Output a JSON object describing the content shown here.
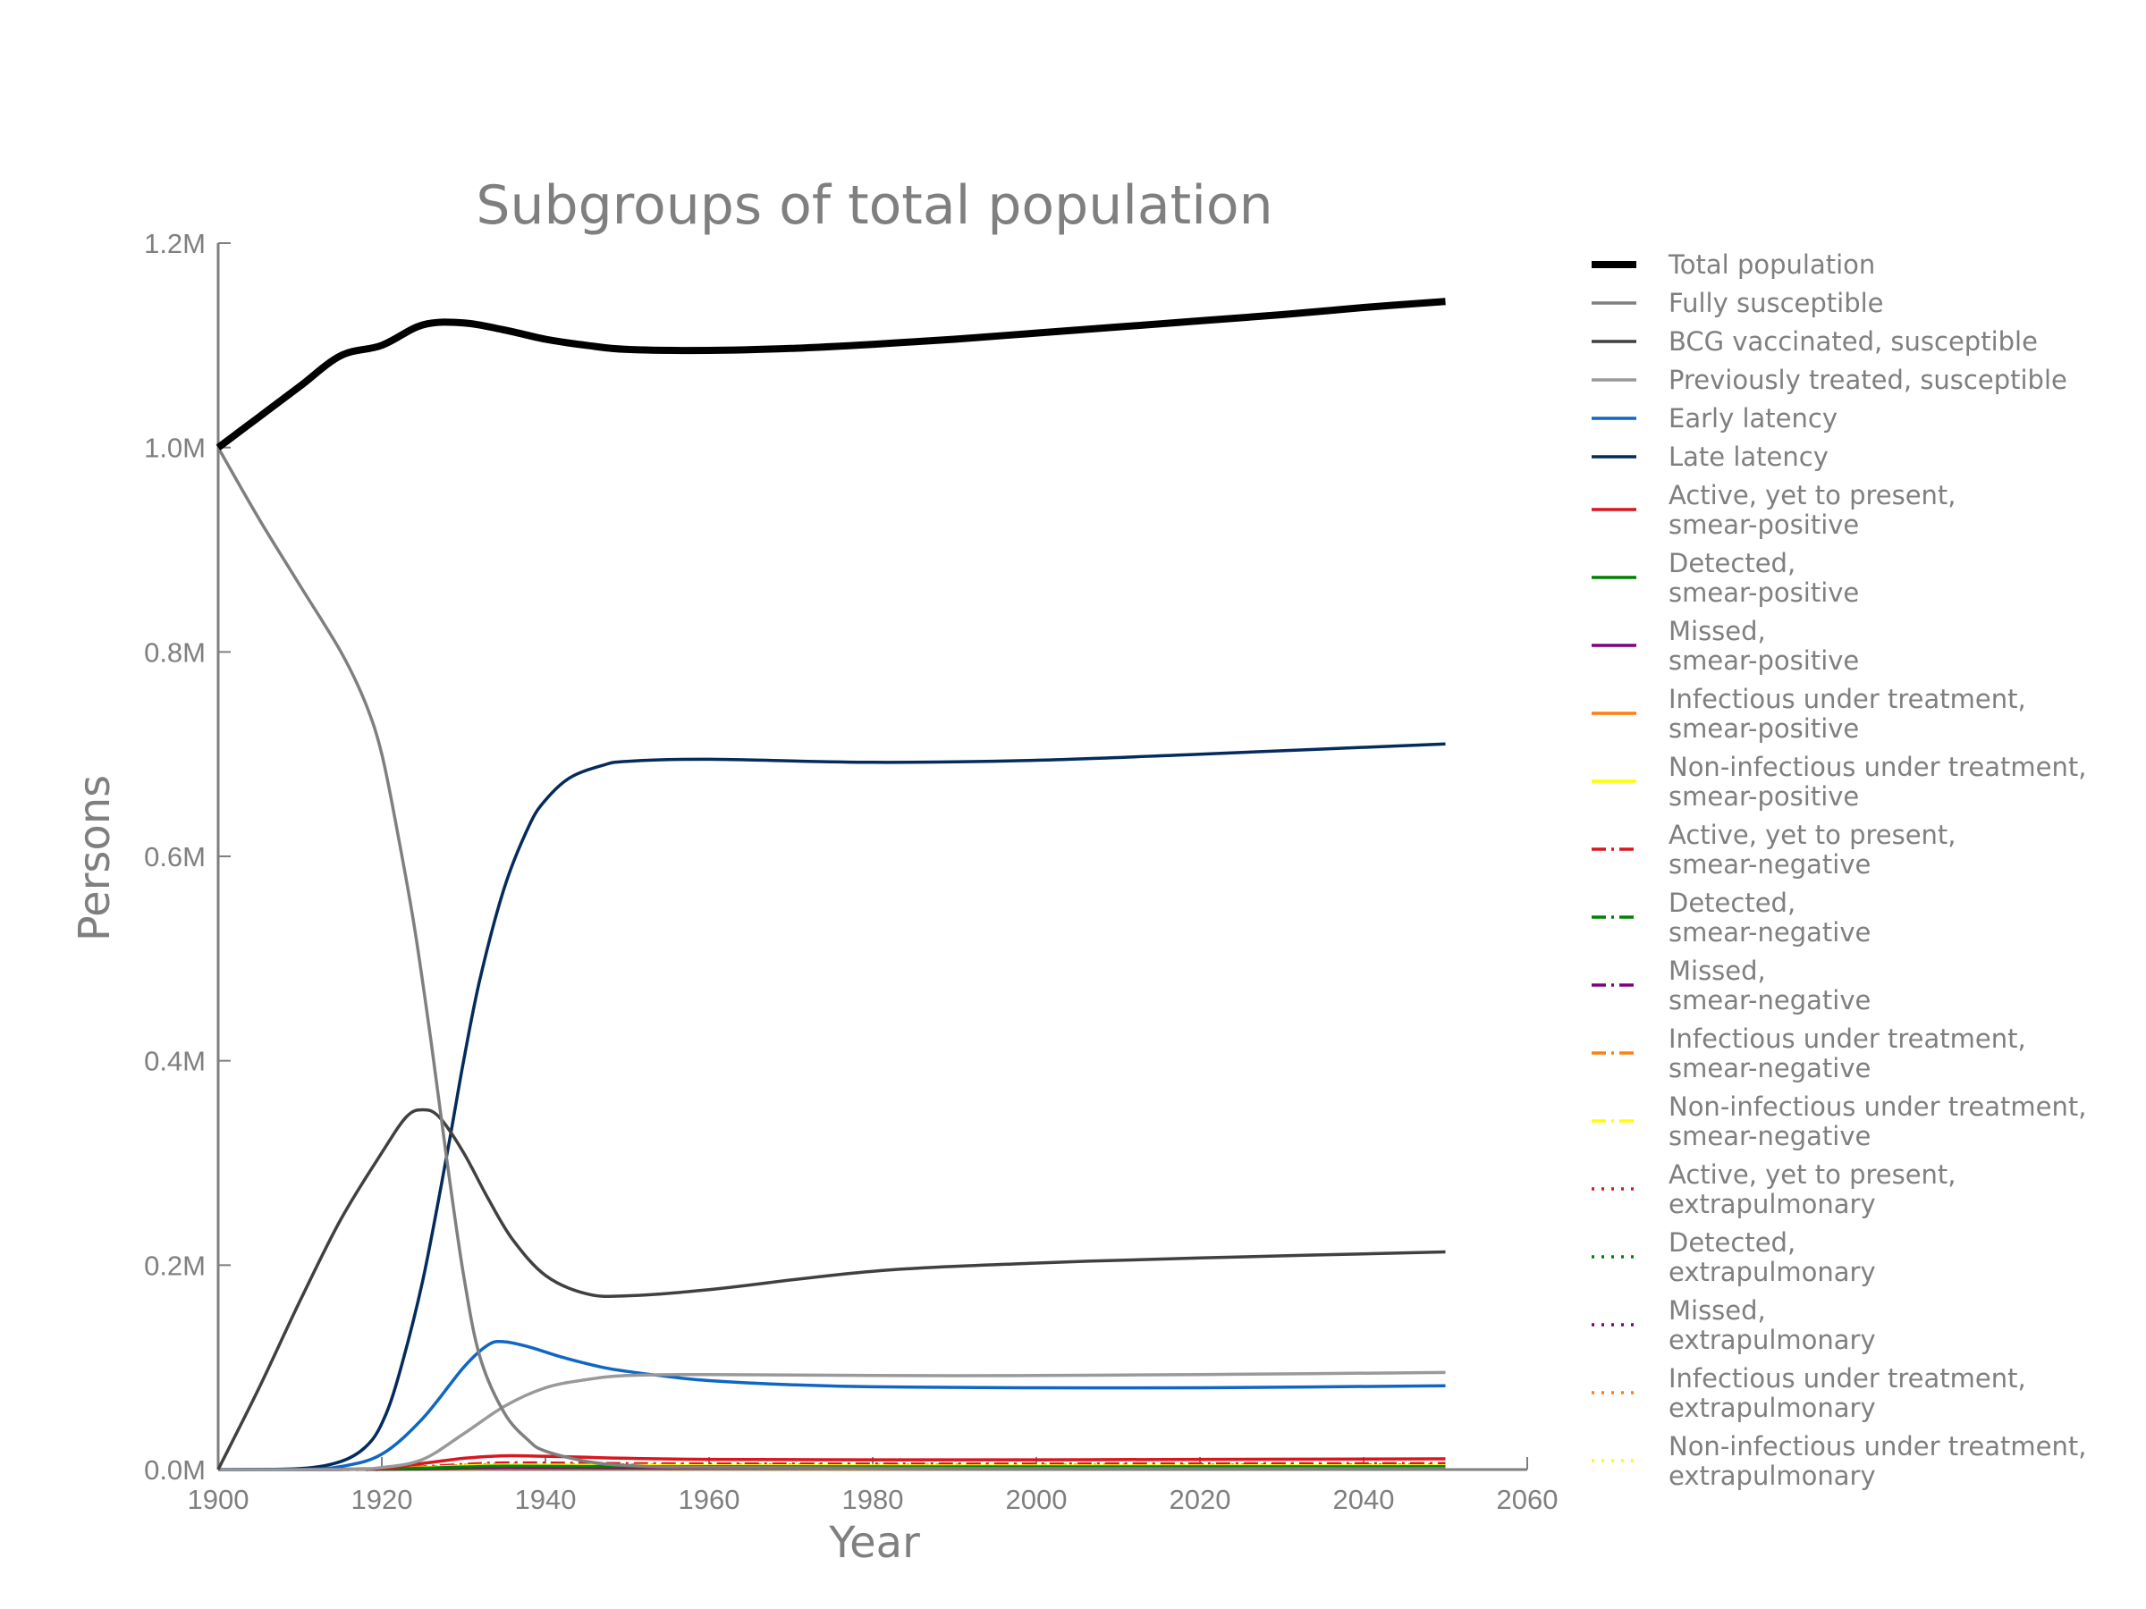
{
  "chart_data": {
    "type": "line",
    "title": "Subgroups of total population",
    "xlabel": "Year",
    "ylabel": "Persons",
    "xlim": [
      1900,
      2060
    ],
    "ylim": [
      0,
      1200000
    ],
    "xticks": [
      1900,
      1920,
      1940,
      1960,
      1980,
      2000,
      2020,
      2040,
      2060
    ],
    "xtick_labels": [
      "1900",
      "1920",
      "1940",
      "1960",
      "1980",
      "2000",
      "2020",
      "2040",
      "2060"
    ],
    "yticks": [
      0,
      200000,
      400000,
      600000,
      800000,
      1000000,
      1200000
    ],
    "ytick_labels": [
      "0.0M",
      "0.2M",
      "0.4M",
      "0.6M",
      "0.8M",
      "1.0M",
      "1.2M"
    ],
    "grid": false,
    "legend_position": "right",
    "series": [
      {
        "name": "Total population",
        "color": "#000000",
        "style": "solid",
        "weight": "heavy",
        "x": [
          1900,
          1905,
          1910,
          1915,
          1920,
          1925,
          1930,
          1935,
          1940,
          1945,
          1950,
          1960,
          1970,
          1980,
          1990,
          2000,
          2010,
          2020,
          2030,
          2040,
          2050
        ],
        "y": [
          1000000,
          1030000,
          1060000,
          1090000,
          1100000,
          1120000,
          1122000,
          1115000,
          1106000,
          1100000,
          1096000,
          1095000,
          1097000,
          1101000,
          1106000,
          1112000,
          1118000,
          1124000,
          1130000,
          1137000,
          1143000
        ]
      },
      {
        "name": "Fully susceptible",
        "color": "#7f7f7f",
        "style": "solid",
        "weight": "normal",
        "x": [
          1900,
          1905,
          1910,
          1915,
          1918,
          1920,
          1922,
          1924,
          1926,
          1928,
          1930,
          1932,
          1935,
          1938,
          1940,
          1945,
          1950,
          1960,
          2000,
          2050
        ],
        "y": [
          1000000,
          930000,
          865000,
          800000,
          750000,
          700000,
          620000,
          530000,
          420000,
          300000,
          190000,
          110000,
          55000,
          28000,
          18000,
          8000,
          4000,
          2000,
          1000,
          1000
        ]
      },
      {
        "name": "BCG vaccinated, susceptible",
        "color": "#404040",
        "style": "solid",
        "weight": "normal",
        "x": [
          1900,
          1905,
          1910,
          1915,
          1920,
          1923,
          1925,
          1927,
          1930,
          1933,
          1936,
          1940,
          1945,
          1950,
          1960,
          1980,
          2000,
          2020,
          2050
        ],
        "y": [
          0,
          80000,
          165000,
          245000,
          310000,
          345000,
          352000,
          345000,
          310000,
          265000,
          225000,
          190000,
          172000,
          170000,
          176000,
          194000,
          202000,
          207000,
          213000
        ]
      },
      {
        "name": "Previously treated, susceptible",
        "color": "#999999",
        "style": "solid",
        "weight": "normal",
        "x": [
          1900,
          1915,
          1920,
          1925,
          1930,
          1935,
          1940,
          1945,
          1950,
          1960,
          1980,
          2000,
          2020,
          2050
        ],
        "y": [
          0,
          0,
          2000,
          10000,
          35000,
          62000,
          80000,
          88000,
          92000,
          93000,
          92000,
          92000,
          93000,
          95000
        ]
      },
      {
        "name": "Early latency",
        "color": "#0f66c4",
        "style": "solid",
        "weight": "normal",
        "x": [
          1900,
          1910,
          1915,
          1920,
          1925,
          1930,
          1933,
          1935,
          1938,
          1942,
          1947,
          1950,
          1955,
          1960,
          1970,
          1980,
          2000,
          2020,
          2050
        ],
        "y": [
          0,
          0,
          3000,
          15000,
          50000,
          100000,
          122000,
          125000,
          120000,
          110000,
          100000,
          96000,
          91000,
          87000,
          83000,
          81000,
          80000,
          80000,
          82000
        ]
      },
      {
        "name": "Late latency",
        "color": "#032b5c",
        "style": "solid",
        "weight": "normal",
        "x": [
          1900,
          1910,
          1915,
          1918,
          1920,
          1922,
          1925,
          1928,
          1930,
          1932,
          1935,
          1938,
          1940,
          1943,
          1947,
          1950,
          1960,
          1980,
          2000,
          2020,
          2050
        ],
        "y": [
          0,
          1000,
          8000,
          22000,
          45000,
          90000,
          185000,
          310000,
          400000,
          480000,
          570000,
          630000,
          655000,
          677000,
          689000,
          693000,
          695000,
          692000,
          694000,
          700000,
          710000
        ]
      },
      {
        "name": "Active, yet to present,\nsmear-positive",
        "color": "#d8171f",
        "style": "solid",
        "weight": "normal",
        "x": [
          1900,
          1918,
          1925,
          1930,
          1935,
          1940,
          1945,
          1950,
          1960,
          1980,
          2000,
          2020,
          2050
        ],
        "y": [
          0,
          500,
          6000,
          11000,
          13500,
          13000,
          12000,
          11000,
          10000,
          9500,
          9500,
          10000,
          10500
        ]
      },
      {
        "name": "Detected,\nsmear-positive",
        "color": "#008000",
        "style": "solid",
        "weight": "normal",
        "x": [
          1900,
          1920,
          1930,
          1935,
          1945,
          1960,
          2000,
          2050
        ],
        "y": [
          0,
          500,
          2500,
          3200,
          3000,
          2700,
          2600,
          2800
        ]
      },
      {
        "name": "Missed,\nsmear-positive",
        "color": "#800080",
        "style": "solid",
        "weight": "normal",
        "x": [
          1900,
          1920,
          1930,
          1935,
          1945,
          1960,
          2000,
          2050
        ],
        "y": [
          0,
          300,
          1500,
          2000,
          1800,
          1600,
          1500,
          1600
        ]
      },
      {
        "name": "Infectious under treatment,\nsmear-positive",
        "color": "#ff7f0e",
        "style": "solid",
        "weight": "normal",
        "x": [
          1900,
          1920,
          1930,
          1935,
          1945,
          1960,
          2000,
          2050
        ],
        "y": [
          0,
          200,
          1000,
          1300,
          1200,
          1100,
          1000,
          1100
        ]
      },
      {
        "name": "Non-infectious under treatment,\nsmear-positive",
        "color": "#ffff00",
        "style": "solid",
        "weight": "normal",
        "x": [
          1900,
          1920,
          1930,
          1935,
          1945,
          1960,
          2000,
          2050
        ],
        "y": [
          0,
          600,
          3500,
          4500,
          4200,
          3800,
          3600,
          3800
        ]
      },
      {
        "name": "Active, yet to present,\nsmear-negative",
        "color": "#d8171f",
        "style": "dashdot",
        "weight": "normal",
        "x": [
          1900,
          1920,
          1930,
          1935,
          1945,
          1960,
          2000,
          2050
        ],
        "y": [
          0,
          1000,
          5000,
          6500,
          6000,
          5500,
          5500,
          5800
        ]
      },
      {
        "name": "Detected,\nsmear-negative",
        "color": "#008000",
        "style": "dashdot",
        "weight": "normal",
        "x": [
          1900,
          1920,
          1930,
          1935,
          1945,
          1960,
          2000,
          2050
        ],
        "y": [
          0,
          400,
          2000,
          2600,
          2400,
          2200,
          2100,
          2300
        ]
      },
      {
        "name": "Missed,\nsmear-negative",
        "color": "#800080",
        "style": "dashdot",
        "weight": "normal",
        "x": [
          1900,
          1920,
          1930,
          1935,
          1945,
          1960,
          2000,
          2050
        ],
        "y": [
          0,
          300,
          1400,
          1800,
          1700,
          1500,
          1400,
          1500
        ]
      },
      {
        "name": "Infectious under treatment,\nsmear-negative",
        "color": "#ff7f0e",
        "style": "dashdot",
        "weight": "normal",
        "x": [
          1900,
          1920,
          1930,
          1935,
          1945,
          1960,
          2000,
          2050
        ],
        "y": [
          0,
          300,
          1500,
          2000,
          1900,
          1700,
          1600,
          1700
        ]
      },
      {
        "name": "Non-infectious under treatment,\nsmear-negative",
        "color": "#ffff00",
        "style": "dashdot",
        "weight": "normal",
        "x": [
          1900,
          1920,
          1930,
          1935,
          1945,
          1960,
          2000,
          2050
        ],
        "y": [
          0,
          500,
          3000,
          4000,
          3800,
          3500,
          3300,
          3500
        ]
      },
      {
        "name": "Active, yet to present,\nextrapulmonary",
        "color": "#d8171f",
        "style": "dotted",
        "weight": "normal",
        "x": [
          1900,
          1920,
          1930,
          1935,
          1945,
          1960,
          2000,
          2050
        ],
        "y": [
          0,
          800,
          4000,
          5000,
          4700,
          4300,
          4200,
          4400
        ]
      },
      {
        "name": "Detected,\nextrapulmonary",
        "color": "#008000",
        "style": "dotted",
        "weight": "normal",
        "x": [
          1900,
          1920,
          1930,
          1935,
          1945,
          1960,
          2000,
          2050
        ],
        "y": [
          0,
          300,
          1500,
          2000,
          1900,
          1700,
          1600,
          1700
        ]
      },
      {
        "name": "Missed,\nextrapulmonary",
        "color": "#800080",
        "style": "dotted",
        "weight": "normal",
        "x": [
          1900,
          1920,
          1930,
          1935,
          1945,
          1960,
          2000,
          2050
        ],
        "y": [
          0,
          200,
          1000,
          1300,
          1200,
          1100,
          1000,
          1100
        ]
      },
      {
        "name": "Infectious under treatment,\nextrapulmonary",
        "color": "#ff7f0e",
        "style": "dotted",
        "weight": "normal",
        "x": [
          1900,
          1920,
          1930,
          1935,
          1945,
          1960,
          2000,
          2050
        ],
        "y": [
          0,
          200,
          900,
          1200,
          1100,
          1000,
          950,
          1000
        ]
      },
      {
        "name": "Non-infectious under treatment,\nextrapulmonary",
        "color": "#ffff00",
        "style": "dotted",
        "weight": "normal",
        "x": [
          1900,
          1920,
          1930,
          1935,
          1945,
          1960,
          2000,
          2050
        ],
        "y": [
          0,
          400,
          2500,
          3200,
          3000,
          2800,
          2700,
          2900
        ]
      }
    ]
  }
}
